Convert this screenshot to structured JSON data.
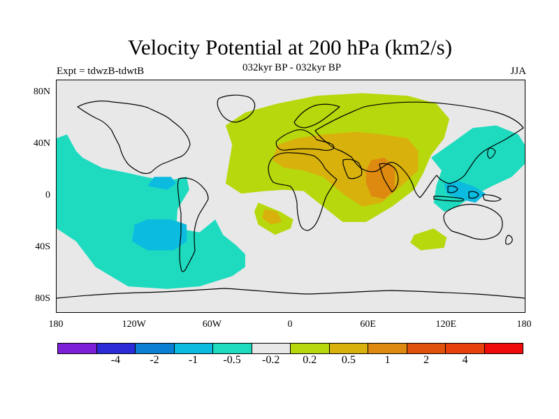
{
  "title": "Velocity Potential at 200 hPa (km2/s)",
  "subtitle": "032kyr BP - 032kyr BP",
  "expt_label": "Expt = tdwzB-tdwtB",
  "season_label": "JJA",
  "y_ticks": [
    {
      "label": "80N",
      "lat": 80
    },
    {
      "label": "40N",
      "lat": 40
    },
    {
      "label": "0",
      "lat": 0
    },
    {
      "label": "40S",
      "lat": -40
    },
    {
      "label": "80S",
      "lat": -80
    }
  ],
  "x_ticks": [
    {
      "label": "180",
      "lon": -180
    },
    {
      "label": "120W",
      "lon": -120
    },
    {
      "label": "60W",
      "lon": -60
    },
    {
      "label": "0",
      "lon": 0
    },
    {
      "label": "60E",
      "lon": 60
    },
    {
      "label": "120E",
      "lon": 120
    },
    {
      "label": "180",
      "lon": 180
    }
  ],
  "colorbar": {
    "colors": [
      "#7d1fd6",
      "#2b2bd8",
      "#0b7fd3",
      "#0bbbe0",
      "#1edbbf",
      "#e8e8e8",
      "#b7d80c",
      "#d9b10d",
      "#de8a10",
      "#e0520b",
      "#e8400d",
      "#ef0b0b"
    ],
    "labels": [
      "-4",
      "-2",
      "-1",
      "-0.5",
      "-0.2",
      "0.2",
      "0.5",
      "1",
      "2",
      "4"
    ]
  },
  "chart_data": {
    "type": "map",
    "projection": "cylindrical equidistant",
    "xlim": [
      -180,
      180
    ],
    "ylim": [
      -90,
      90
    ],
    "units": "km2/s",
    "levels": [
      -4,
      -2,
      -1,
      -0.5,
      -0.2,
      0.2,
      0.5,
      1,
      2,
      4
    ],
    "default_color": "#e8e8e8",
    "regions": [
      {
        "level": "-0.2 to -0.5",
        "color": "#1edbbf",
        "points": [
          [
            -180,
            45
          ],
          [
            -172,
            48
          ],
          [
            -165,
            35
          ],
          [
            -160,
            30
          ],
          [
            -145,
            22
          ],
          [
            -125,
            18
          ],
          [
            -112,
            15
          ],
          [
            -95,
            12
          ],
          [
            -80,
            15
          ],
          [
            -78,
            5
          ],
          [
            -87,
            -10
          ],
          [
            -88,
            -25
          ],
          [
            -70,
            -28
          ],
          [
            -58,
            -18
          ],
          [
            -52,
            -30
          ],
          [
            -42,
            -38
          ],
          [
            -35,
            -45
          ],
          [
            -35,
            -55
          ],
          [
            -45,
            -62
          ],
          [
            -70,
            -70
          ],
          [
            -95,
            -72
          ],
          [
            -125,
            -70
          ],
          [
            -150,
            -55
          ],
          [
            -165,
            -35
          ],
          [
            -180,
            -25
          ]
        ]
      },
      {
        "level": "-0.2 to -0.5",
        "color": "#1edbbf",
        "points": [
          [
            108,
            30
          ],
          [
            125,
            42
          ],
          [
            140,
            53
          ],
          [
            158,
            55
          ],
          [
            175,
            48
          ],
          [
            180,
            40
          ],
          [
            180,
            25
          ],
          [
            170,
            15
          ],
          [
            155,
            8
          ],
          [
            140,
            0
          ],
          [
            128,
            -8
          ],
          [
            118,
            -12
          ],
          [
            110,
            -5
          ],
          [
            112,
            8
          ],
          [
            116,
            20
          ]
        ]
      },
      {
        "level": "-0.5 to -1",
        "color": "#0bbbe0",
        "points": [
          [
            -120,
            -22
          ],
          [
            -110,
            -18
          ],
          [
            -92,
            -18
          ],
          [
            -80,
            -22
          ],
          [
            -80,
            -35
          ],
          [
            -90,
            -42
          ],
          [
            -110,
            -42
          ],
          [
            -122,
            -35
          ]
        ]
      },
      {
        "level": "-0.5 to -1",
        "color": "#0bbbe0",
        "points": [
          [
            -110,
            8
          ],
          [
            -95,
            5
          ],
          [
            -88,
            10
          ],
          [
            -92,
            15
          ],
          [
            -105,
            15
          ]
        ]
      },
      {
        "level": "-0.5 to -1",
        "color": "#0bbbe0",
        "points": [
          [
            118,
            10
          ],
          [
            128,
            12
          ],
          [
            140,
            8
          ],
          [
            150,
            2
          ],
          [
            142,
            -5
          ],
          [
            130,
            -2
          ],
          [
            120,
            2
          ]
        ]
      },
      {
        "level": "0.2 to 0.5",
        "color": "#b7d80c",
        "points": [
          [
            -50,
            55
          ],
          [
            -35,
            65
          ],
          [
            -10,
            72
          ],
          [
            20,
            78
          ],
          [
            55,
            80
          ],
          [
            90,
            78
          ],
          [
            112,
            72
          ],
          [
            122,
            60
          ],
          [
            118,
            45
          ],
          [
            108,
            32
          ],
          [
            102,
            18
          ],
          [
            95,
            5
          ],
          [
            78,
            -8
          ],
          [
            58,
            -20
          ],
          [
            40,
            -20
          ],
          [
            25,
            -8
          ],
          [
            10,
            4
          ],
          [
            -5,
            5
          ],
          [
            -20,
            4
          ],
          [
            -38,
            2
          ],
          [
            -50,
            10
          ],
          [
            -47,
            28
          ],
          [
            -45,
            40
          ]
        ]
      },
      {
        "level": "0.2 to 0.5",
        "color": "#b7d80c",
        "points": [
          [
            -25,
            -5
          ],
          [
            -8,
            -12
          ],
          [
            2,
            -18
          ],
          [
            0,
            -25
          ],
          [
            -12,
            -30
          ],
          [
            -25,
            -22
          ],
          [
            -28,
            -12
          ]
        ]
      },
      {
        "level": "0.2 to 0.5",
        "color": "#b7d80c",
        "points": [
          [
            95,
            -30
          ],
          [
            110,
            -25
          ],
          [
            120,
            -32
          ],
          [
            118,
            -40
          ],
          [
            100,
            -42
          ],
          [
            92,
            -36
          ]
        ]
      },
      {
        "level": "0.5 to 1",
        "color": "#d9b10d",
        "points": [
          [
            -10,
            40
          ],
          [
            5,
            45
          ],
          [
            25,
            48
          ],
          [
            50,
            50
          ],
          [
            70,
            48
          ],
          [
            90,
            45
          ],
          [
            98,
            35
          ],
          [
            98,
            20
          ],
          [
            85,
            8
          ],
          [
            70,
            -5
          ],
          [
            55,
            -8
          ],
          [
            40,
            2
          ],
          [
            25,
            15
          ],
          [
            10,
            20
          ],
          [
            -5,
            22
          ],
          [
            -14,
            28
          ]
        ]
      },
      {
        "level": "0.5 to 1",
        "color": "#d9b10d",
        "points": [
          [
            -20,
            -10
          ],
          [
            -10,
            -12
          ],
          [
            -7,
            -20
          ],
          [
            -15,
            -22
          ],
          [
            -22,
            -17
          ]
        ]
      },
      {
        "level": "1 to 2",
        "color": "#de8a10",
        "points": [
          [
            62,
            28
          ],
          [
            72,
            30
          ],
          [
            80,
            22
          ],
          [
            80,
            5
          ],
          [
            72,
            -2
          ],
          [
            62,
            0
          ],
          [
            58,
            10
          ],
          [
            58,
            20
          ]
        ]
      }
    ]
  }
}
